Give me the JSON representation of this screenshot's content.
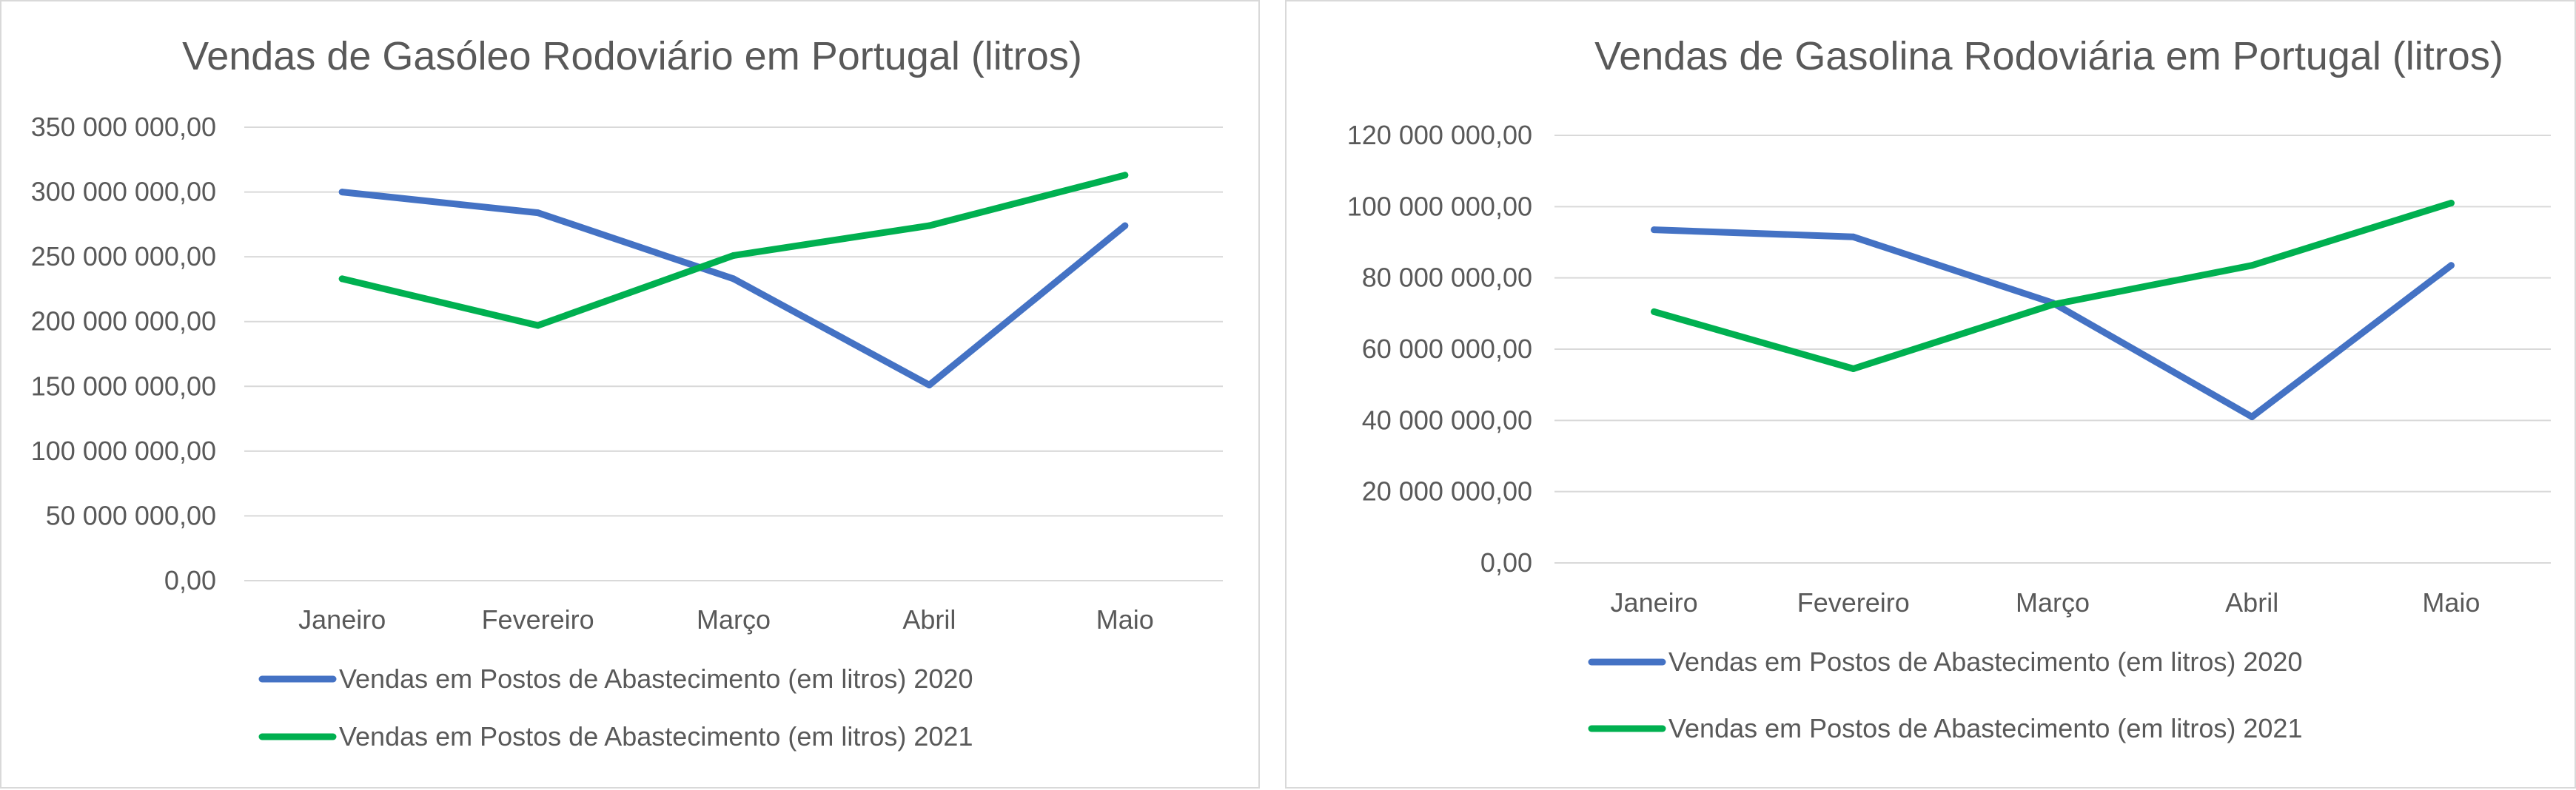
{
  "chart_data": [
    {
      "type": "line",
      "title": "Vendas de Gasóleo Rodoviário em Portugal (litros)",
      "xlabel": "",
      "ylabel": "",
      "categories": [
        "Janeiro",
        "Fevereiro",
        "Março",
        "Abril",
        "Maio"
      ],
      "ylim": [
        0,
        350000000
      ],
      "ytick_labels": [
        "0,00",
        "50 000 000,00",
        "100 000 000,00",
        "150 000 000,00",
        "200 000 000,00",
        "250 000 000,00",
        "300 000 000,00",
        "350 000 000,00"
      ],
      "grid": true,
      "legend_position": "bottom",
      "series": [
        {
          "name": "Vendas em Postos de Abastecimento  (em litros) 2020",
          "color": "#4472c4",
          "values": [
            300000000,
            284000000,
            233000000,
            151000000,
            274000000
          ]
        },
        {
          "name": "Vendas em Postos de Abastecimento  (em litros) 2021",
          "color": "#00b050",
          "values": [
            233000000,
            197000000,
            251000000,
            274000000,
            313000000
          ]
        }
      ]
    },
    {
      "type": "line",
      "title": "Vendas de Gasolina Rodoviária em Portugal (litros)",
      "xlabel": "",
      "ylabel": "",
      "categories": [
        "Janeiro",
        "Fevereiro",
        "Março",
        "Abril",
        "Maio"
      ],
      "ylim": [
        0,
        120000000
      ],
      "ytick_labels": [
        "0,00",
        "20 000 000,00",
        "40 000 000,00",
        "60 000 000,00",
        "80 000 000,00",
        "100 000 000,00",
        "120 000 000,00"
      ],
      "grid": true,
      "legend_position": "bottom",
      "series": [
        {
          "name": "Vendas em Postos de Abastecimento  (em litros) 2020",
          "color": "#4472c4",
          "values": [
            93500000,
            91500000,
            73000000,
            41000000,
            83500000
          ]
        },
        {
          "name": "Vendas em Postos de Abastecimento  (em litros) 2021",
          "color": "#00b050",
          "values": [
            70500000,
            54500000,
            72500000,
            83500000,
            101000000
          ]
        }
      ]
    }
  ]
}
